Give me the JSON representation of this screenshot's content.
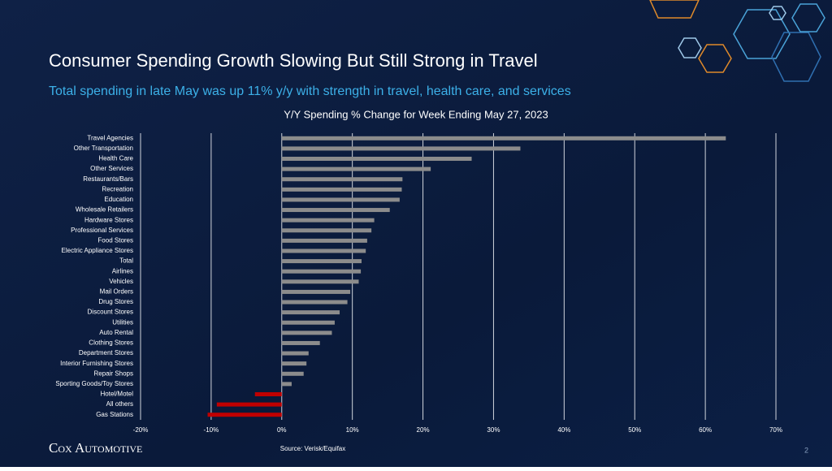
{
  "slide": {
    "title": "Consumer Spending Growth Slowing But Still Strong in Travel",
    "subtitle": "Total spending in late May was up 11% y/y with strength in travel, health care, and services",
    "logo": "Cox Automotive",
    "page_number": "2"
  },
  "chart_data": {
    "type": "hbar",
    "title": "Y/Y Spending % Change for Week Ending May 27, 2023",
    "source": "Source: Verisk/Equifax",
    "categories": [
      "Travel Agencies",
      "Other Transportation",
      "Health Care",
      "Other Services",
      "Restaurants/Bars",
      "Recreation",
      "Education",
      "Wholesale Retailers",
      "Hardware Stores",
      "Professional Services",
      "Food Stores",
      "Electric Appliance Stores",
      "Total",
      "Airlines",
      "Vehicles",
      "Mail Orders",
      "Drug Stores",
      "Discount Stores",
      "Utilities",
      "Auto Rental",
      "Clothing Stores",
      "Department Stores",
      "Interior Furnishing Stores",
      "Repair Shops",
      "Sporting Goods/Toy Stores",
      "Hotel/Motel",
      "All others",
      "Gas Stations"
    ],
    "values": [
      62.9,
      33.8,
      26.9,
      21.1,
      17.1,
      17,
      16.7,
      15.3,
      13.1,
      12.7,
      12.1,
      11.9,
      11.3,
      11.2,
      10.9,
      9.7,
      9.3,
      8.2,
      7.5,
      7.1,
      5.4,
      3.8,
      3.5,
      3.1,
      1.4,
      -3.8,
      -9.2,
      -10.5
    ],
    "color": "#8c8c8c",
    "negative_color": "#c00000",
    "xlim": [
      -20,
      70
    ],
    "xticks": [
      {
        "value": -20,
        "label": "-20%"
      },
      {
        "value": -10,
        "label": "-10%"
      },
      {
        "value": 0,
        "label": "0%"
      },
      {
        "value": 10,
        "label": "10%"
      },
      {
        "value": 20,
        "label": "20%"
      },
      {
        "value": 30,
        "label": "30%"
      },
      {
        "value": 40,
        "label": "40%"
      },
      {
        "value": 50,
        "label": "50%"
      },
      {
        "value": 60,
        "label": "60%"
      },
      {
        "value": 70,
        "label": "70%"
      }
    ],
    "grid": true
  }
}
